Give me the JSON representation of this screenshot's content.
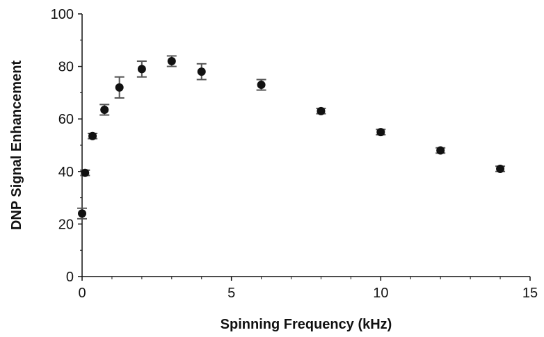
{
  "chart_data": {
    "type": "scatter",
    "title": "",
    "xlabel": "Spinning Frequency (kHz)",
    "ylabel": "DNP Signal Enhancement",
    "xlim": [
      0,
      15
    ],
    "ylim": [
      0,
      100
    ],
    "x_ticks": [
      0,
      5,
      10,
      15
    ],
    "y_ticks": [
      0,
      20,
      40,
      60,
      80,
      100
    ],
    "x_minor_tick_step": 1,
    "y_minor_tick_step": 10,
    "grid": false,
    "legend": "none",
    "marker_color": "#111111",
    "errorbar_color": "#555555",
    "series": [
      {
        "x": [
          0.0,
          0.1,
          0.35,
          0.75,
          1.25,
          2.0,
          3.0,
          4.0,
          6.0,
          8.0,
          10.0,
          12.0,
          14.0
        ],
        "y": [
          24,
          39.5,
          53.5,
          63.5,
          72,
          79,
          82,
          78,
          73,
          63,
          55,
          48,
          41
        ],
        "err": [
          2,
          1,
          1,
          2,
          4,
          3,
          2,
          3,
          2,
          1,
          1,
          1,
          1
        ]
      }
    ]
  }
}
